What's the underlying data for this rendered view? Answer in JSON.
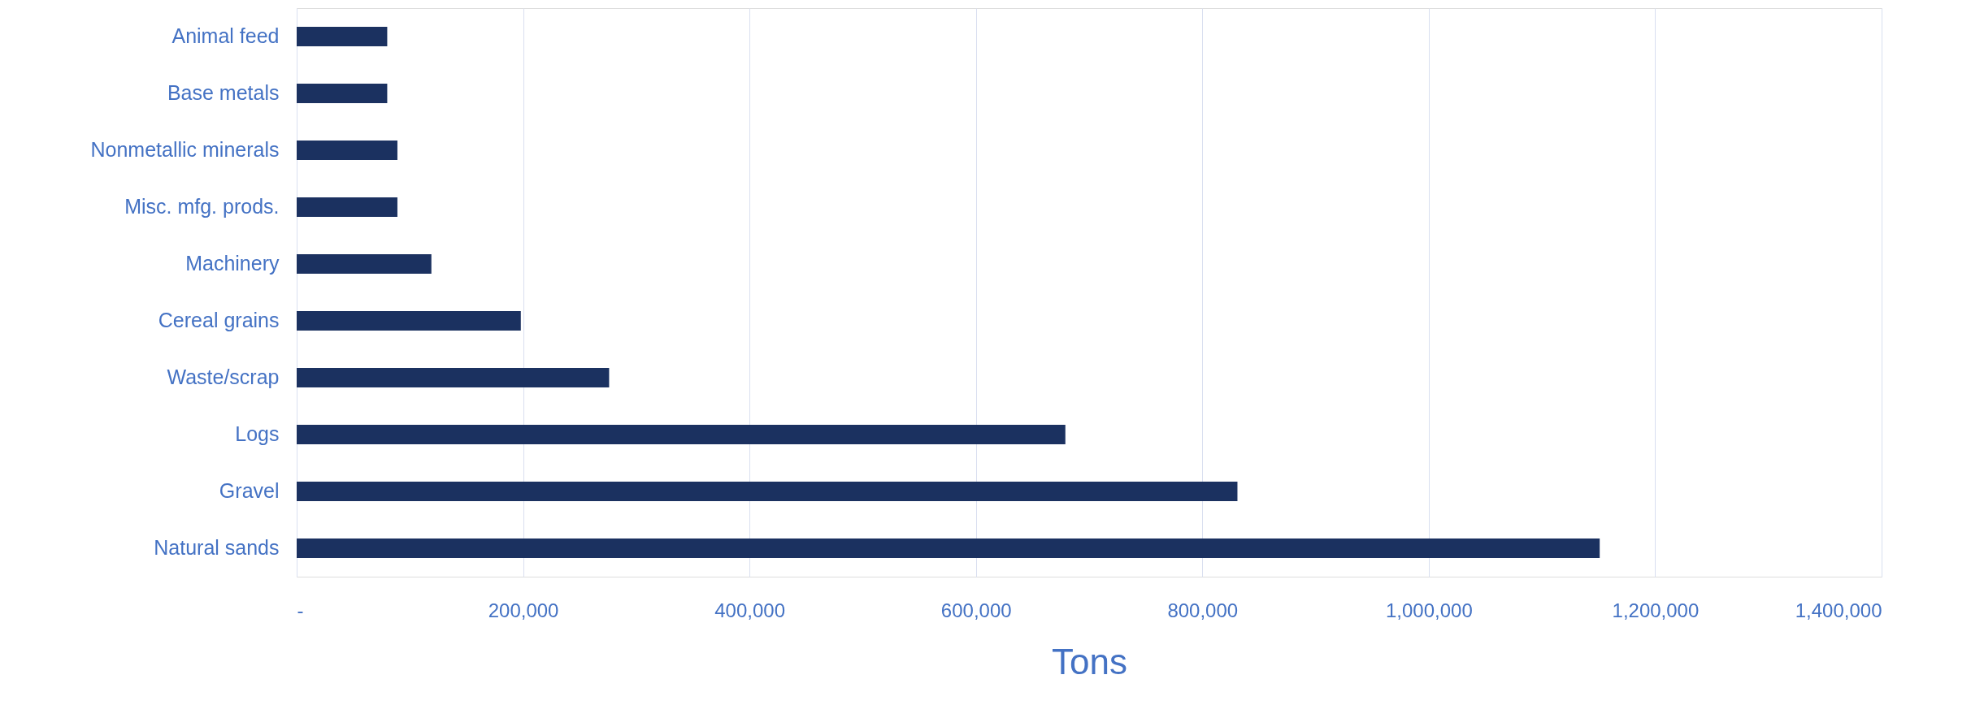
{
  "chart_data": {
    "type": "bar",
    "orientation": "horizontal",
    "xlabel": "Tons",
    "categories": [
      "Animal feed",
      "Base metals",
      "Nonmetallic minerals",
      "Misc. mfg. prods.",
      "Machinery",
      "Cereal grains",
      "Waste/scrap",
      "Logs",
      "Gravel",
      "Natural sands"
    ],
    "values": [
      80000,
      80000,
      89000,
      89000,
      119000,
      198000,
      276000,
      679000,
      831000,
      1151000
    ],
    "color": "#1b3160",
    "xlim": [
      0,
      1400000
    ],
    "xticks": [
      {
        "value": 0,
        "label": "-"
      },
      {
        "value": 200000,
        "label": "200,000"
      },
      {
        "value": 400000,
        "label": "400,000"
      },
      {
        "value": 600000,
        "label": "600,000"
      },
      {
        "value": 800000,
        "label": "800,000"
      },
      {
        "value": 1000000,
        "label": "1,000,000"
      },
      {
        "value": 1200000,
        "label": "1,200,000"
      },
      {
        "value": 1400000,
        "label": "1,400,000"
      }
    ],
    "grid": "x"
  }
}
